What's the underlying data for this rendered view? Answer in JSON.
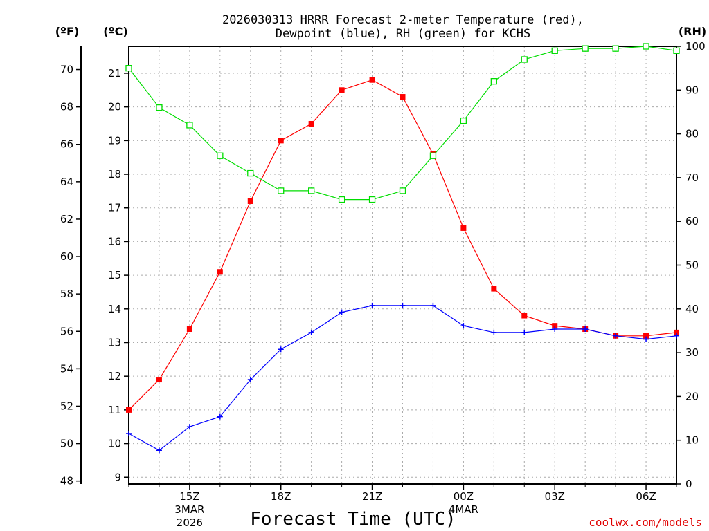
{
  "chart_data": {
    "type": "line",
    "title_line1": "2026030313 HRRR Forecast 2-meter Temperature (red),",
    "title_line2": "Dewpoint (blue), RH (green) for KCHS",
    "xlabel": "Forecast Time (UTC)",
    "credit": "coolwx.com/models",
    "units": {
      "fahrenheit": "(ºF)",
      "celsius": "(ºC)",
      "rh": "(RH)"
    },
    "x_hours": [
      13,
      14,
      15,
      16,
      17,
      18,
      19,
      20,
      21,
      22,
      23,
      24,
      25,
      26,
      27,
      28,
      29,
      30,
      31
    ],
    "x_ticks": [
      {
        "hour": 15,
        "label": "15Z",
        "sub1": "3MAR",
        "sub2": "2026"
      },
      {
        "hour": 18,
        "label": "18Z",
        "sub1": "",
        "sub2": ""
      },
      {
        "hour": 21,
        "label": "21Z",
        "sub1": "",
        "sub2": ""
      },
      {
        "hour": 24,
        "label": "00Z",
        "sub1": "4MAR",
        "sub2": ""
      },
      {
        "hour": 27,
        "label": "03Z",
        "sub1": "",
        "sub2": ""
      },
      {
        "hour": 30,
        "label": "06Z",
        "sub1": "",
        "sub2": ""
      }
    ],
    "celsius_axis": {
      "min": 8.8,
      "max": 21.8,
      "ticks": [
        9,
        10,
        11,
        12,
        13,
        14,
        15,
        16,
        17,
        18,
        19,
        20,
        21
      ]
    },
    "fahrenheit_ticks": [
      48,
      50,
      52,
      54,
      56,
      58,
      60,
      62,
      64,
      66,
      68,
      70
    ],
    "rh_axis": {
      "min": 0,
      "max": 100,
      "ticks": [
        0,
        10,
        20,
        30,
        40,
        50,
        60,
        70,
        80,
        90,
        100
      ]
    },
    "series": [
      {
        "name": "Temperature",
        "color": "#ff0000",
        "marker": "filled-square",
        "values": [
          11.0,
          11.9,
          13.4,
          15.1,
          17.2,
          19.0,
          19.5,
          20.5,
          20.8,
          20.3,
          18.6,
          16.4,
          14.6,
          13.8,
          13.5,
          13.4,
          13.2,
          13.2,
          13.3
        ]
      },
      {
        "name": "Dewpoint",
        "color": "#0000ff",
        "marker": "plus",
        "values": [
          10.3,
          9.8,
          10.5,
          10.8,
          11.9,
          12.8,
          13.3,
          13.9,
          14.1,
          14.1,
          14.1,
          13.5,
          13.3,
          13.3,
          13.4,
          13.4,
          13.2,
          13.1,
          13.2
        ]
      },
      {
        "name": "RH",
        "color": "#00dd00",
        "marker": "open-square",
        "values": [
          95,
          86,
          82,
          75,
          71,
          67,
          67,
          65,
          65,
          67,
          75,
          83,
          92,
          97,
          99,
          99.5,
          99.5,
          100,
          99
        ]
      }
    ]
  }
}
